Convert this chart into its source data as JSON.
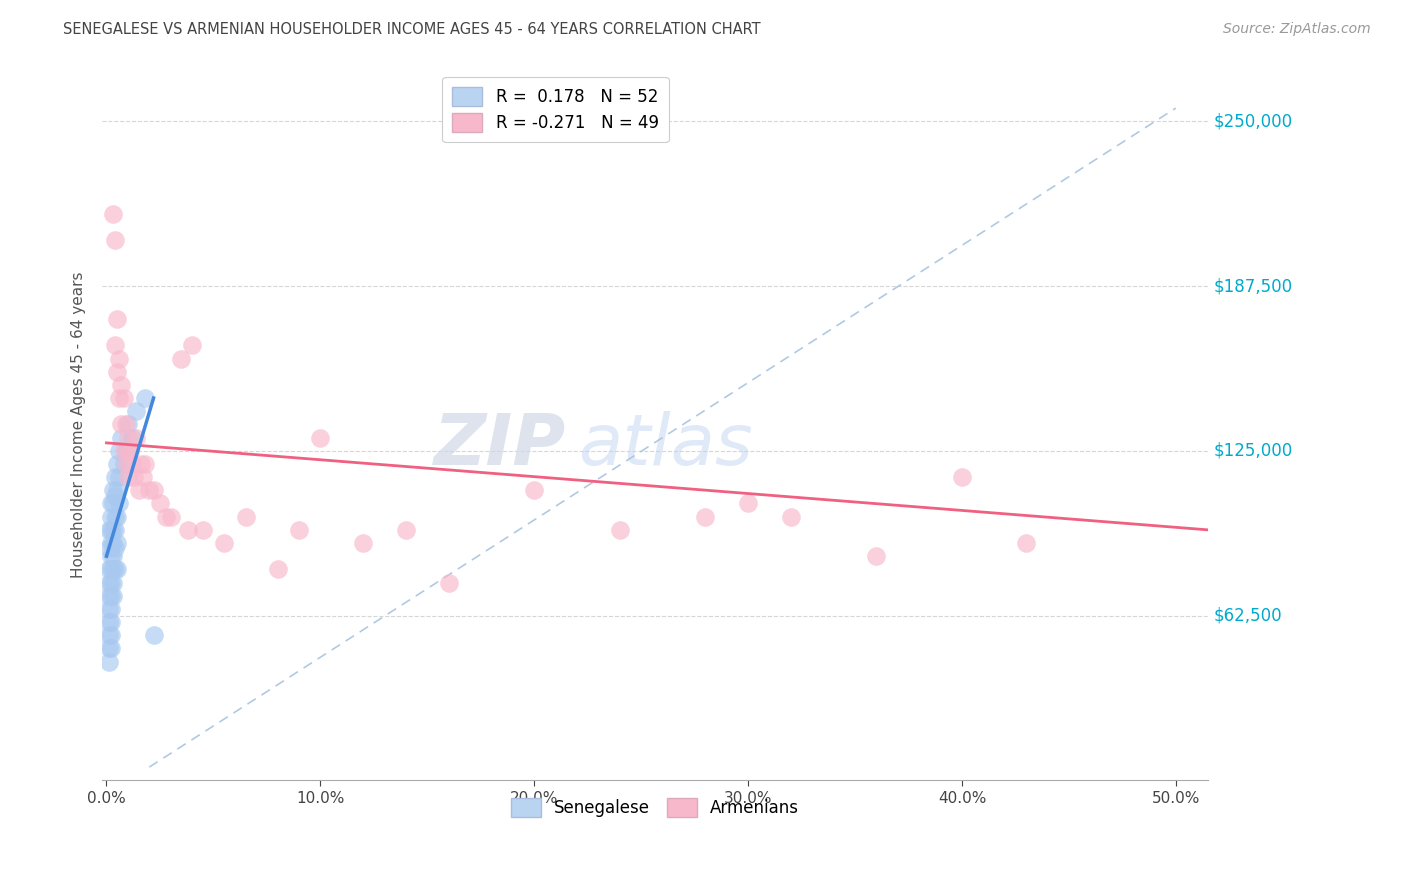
{
  "title": "SENEGALESE VS ARMENIAN HOUSEHOLDER INCOME AGES 45 - 64 YEARS CORRELATION CHART",
  "source": "Source: ZipAtlas.com",
  "ylabel": "Householder Income Ages 45 - 64 years",
  "xlabel_ticks": [
    "0.0%",
    "10.0%",
    "20.0%",
    "30.0%",
    "40.0%",
    "50.0%"
  ],
  "xlabel_vals": [
    0.0,
    0.1,
    0.2,
    0.3,
    0.4,
    0.5
  ],
  "ytick_labels": [
    "$62,500",
    "$125,000",
    "$187,500",
    "$250,000"
  ],
  "ytick_vals": [
    62500,
    125000,
    187500,
    250000
  ],
  "ymin": 0,
  "ymax": 270000,
  "xmin": -0.002,
  "xmax": 0.515,
  "watermark_zip": "ZIP",
  "watermark_atlas": "atlas",
  "legend1_text": "R =  0.178   N = 52",
  "legend2_text": "R = -0.271   N = 49",
  "legend1_color": "#b8d4f0",
  "legend2_color": "#f8b8cc",
  "blue_line_color": "#4488dd",
  "pink_line_color": "#f06080",
  "dashed_line_color": "#a8c4e0",
  "senegalese_color": "#a8c8f0",
  "armenian_color": "#f8b8cc",
  "senegalese_edge": "#88aadd",
  "armenian_edge": "#e890a8",
  "senegalese_x": [
    0.001,
    0.001,
    0.001,
    0.001,
    0.001,
    0.001,
    0.001,
    0.001,
    0.001,
    0.001,
    0.002,
    0.002,
    0.002,
    0.002,
    0.002,
    0.002,
    0.002,
    0.002,
    0.002,
    0.002,
    0.002,
    0.002,
    0.003,
    0.003,
    0.003,
    0.003,
    0.003,
    0.003,
    0.003,
    0.003,
    0.004,
    0.004,
    0.004,
    0.004,
    0.004,
    0.004,
    0.005,
    0.005,
    0.005,
    0.005,
    0.005,
    0.006,
    0.006,
    0.006,
    0.007,
    0.008,
    0.009,
    0.01,
    0.012,
    0.014,
    0.018,
    0.022
  ],
  "senegalese_y": [
    95000,
    88000,
    80000,
    75000,
    70000,
    65000,
    60000,
    55000,
    50000,
    45000,
    105000,
    100000,
    95000,
    90000,
    85000,
    80000,
    75000,
    70000,
    65000,
    60000,
    55000,
    50000,
    110000,
    105000,
    95000,
    90000,
    85000,
    80000,
    75000,
    70000,
    115000,
    108000,
    100000,
    95000,
    88000,
    80000,
    120000,
    110000,
    100000,
    90000,
    80000,
    125000,
    115000,
    105000,
    130000,
    120000,
    125000,
    135000,
    130000,
    140000,
    145000,
    55000
  ],
  "armenian_x": [
    0.003,
    0.004,
    0.004,
    0.005,
    0.005,
    0.006,
    0.006,
    0.007,
    0.007,
    0.008,
    0.008,
    0.009,
    0.009,
    0.01,
    0.01,
    0.01,
    0.011,
    0.012,
    0.013,
    0.014,
    0.015,
    0.016,
    0.017,
    0.018,
    0.02,
    0.022,
    0.025,
    0.028,
    0.03,
    0.035,
    0.038,
    0.04,
    0.045,
    0.055,
    0.065,
    0.08,
    0.09,
    0.1,
    0.12,
    0.14,
    0.16,
    0.2,
    0.24,
    0.28,
    0.3,
    0.32,
    0.36,
    0.4,
    0.43
  ],
  "armenian_y": [
    215000,
    205000,
    165000,
    175000,
    155000,
    160000,
    145000,
    150000,
    135000,
    145000,
    125000,
    135000,
    120000,
    130000,
    125000,
    115000,
    125000,
    120000,
    115000,
    130000,
    110000,
    120000,
    115000,
    120000,
    110000,
    110000,
    105000,
    100000,
    100000,
    160000,
    95000,
    165000,
    95000,
    90000,
    100000,
    80000,
    95000,
    130000,
    90000,
    95000,
    75000,
    110000,
    95000,
    100000,
    105000,
    100000,
    85000,
    115000,
    90000
  ],
  "blue_trend_x": [
    0.0,
    0.022
  ],
  "blue_trend_y": [
    85000,
    145000
  ],
  "pink_trend_x": [
    0.0,
    0.515
  ],
  "pink_trend_y": [
    128000,
    95000
  ],
  "dashed_trend_x": [
    0.02,
    0.5
  ],
  "dashed_trend_y": [
    5000,
    255000
  ]
}
